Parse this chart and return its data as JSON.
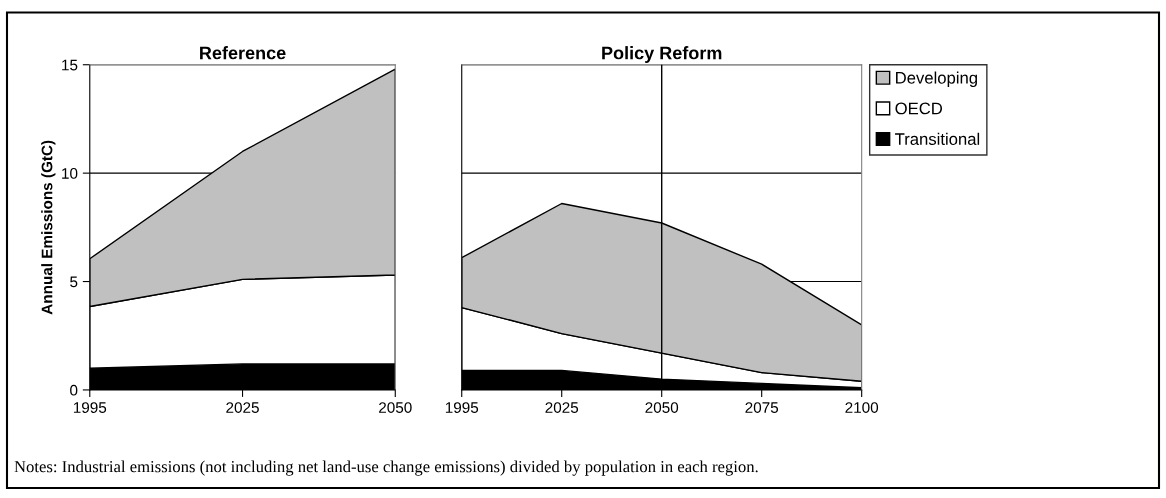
{
  "chart_data": [
    {
      "type": "area",
      "title": "Reference",
      "ylabel": "Annual Emissions (GtC)",
      "stacked": true,
      "categories": [
        "1995",
        "2025",
        "2050"
      ],
      "ylim": [
        0,
        15
      ],
      "yticks": [
        0,
        5,
        10,
        15
      ],
      "grid": "y",
      "series": [
        {
          "color": "#000000",
          "values": [
            1.0,
            1.2,
            1.2
          ]
        },
        {
          "color": "#ffffff",
          "values": [
            2.85,
            3.9,
            4.1
          ]
        },
        {
          "color": "#c0c0c0",
          "values": [
            2.2,
            5.9,
            9.5
          ]
        }
      ]
    },
    {
      "type": "area",
      "title": "Policy Reform",
      "stacked": true,
      "categories": [
        "1995",
        "2025",
        "2050",
        "2075",
        "2100"
      ],
      "ylim": [
        0,
        15
      ],
      "yticks": [
        0,
        5,
        10,
        15
      ],
      "grid": "y",
      "tick_labels": "x",
      "legend": "right",
      "ref_lines": [
        {
          "axis": "x",
          "value": "2050",
          "color": "#000000"
        }
      ],
      "annotations": [
        "Notes: Industrial emissions (not including net land-use change emissions) divided by population in each region."
      ],
      "series": [
        {
          "name": "Transitional",
          "color": "#000000",
          "values": [
            0.9,
            0.9,
            0.5,
            0.3,
            0.1
          ]
        },
        {
          "name": "OECD",
          "color": "#ffffff",
          "values": [
            2.9,
            1.7,
            1.2,
            0.5,
            0.3
          ]
        },
        {
          "name": "Developing",
          "color": "#c0c0c0",
          "values": [
            2.3,
            6.0,
            6.0,
            5.0,
            2.6
          ]
        }
      ]
    }
  ]
}
